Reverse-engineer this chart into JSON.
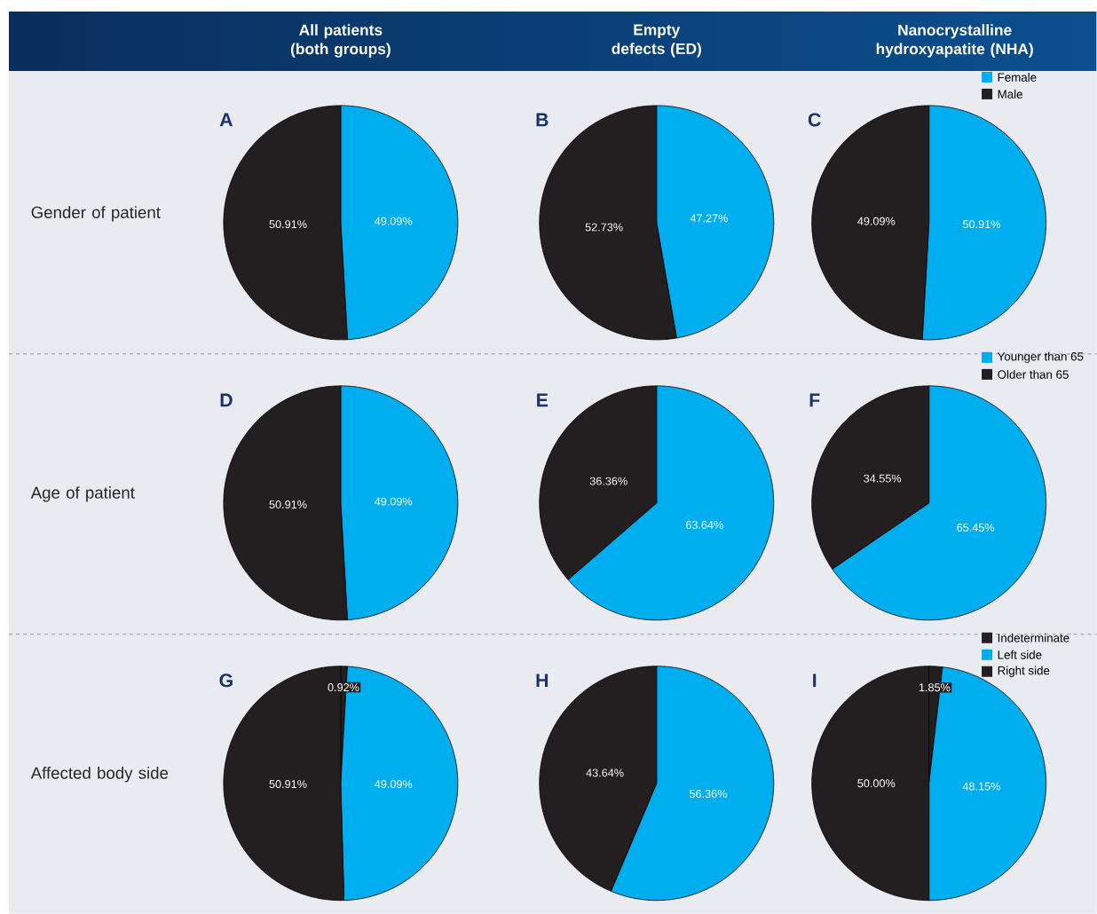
{
  "chart_data": [
    {
      "type": "pie",
      "title": "A",
      "subtitle": "All patients (both groups)",
      "annotations": [
        "Gender of patient"
      ],
      "categories": [
        null,
        null
      ],
      "values": [
        49.09,
        50.91
      ],
      "colors": [
        "#00aeef",
        "#231f20"
      ],
      "value_labels": [
        "49.09%",
        "50.91%"
      ]
    },
    {
      "type": "pie",
      "title": "B",
      "subtitle": "Empty defects (ED)",
      "categories": [
        null,
        null
      ],
      "values": [
        47.27,
        52.73
      ],
      "colors": [
        "#00aeef",
        "#231f20"
      ],
      "value_labels": [
        "47.27%",
        "52.73%"
      ]
    },
    {
      "type": "pie",
      "title": "C",
      "subtitle": "Nanocrystalline hydroxyapatite (NHA)",
      "categories": [
        "Female",
        "Male"
      ],
      "values": [
        50.91,
        49.09
      ],
      "colors": [
        "#00aeef",
        "#231f20"
      ],
      "value_labels": [
        "50.91%",
        "49.09%"
      ],
      "legend": "top right"
    },
    {
      "type": "pie",
      "title": "D",
      "annotations": [
        "Age of patient"
      ],
      "categories": [
        null,
        null
      ],
      "values": [
        49.09,
        50.91
      ],
      "colors": [
        "#00aeef",
        "#231f20"
      ],
      "value_labels": [
        "49.09%",
        "50.91%"
      ]
    },
    {
      "type": "pie",
      "title": "E",
      "categories": [
        null,
        null
      ],
      "values": [
        63.64,
        36.36
      ],
      "colors": [
        "#00aeef",
        "#231f20"
      ],
      "value_labels": [
        "63.64%",
        "36.36%"
      ]
    },
    {
      "type": "pie",
      "title": "F",
      "categories": [
        "Younger than 65",
        "Older than 65"
      ],
      "values": [
        65.45,
        34.55
      ],
      "colors": [
        "#00aeef",
        "#231f20"
      ],
      "value_labels": [
        "65.45%",
        "34.55%"
      ],
      "legend": "top right"
    },
    {
      "type": "pie",
      "title": "G",
      "annotations": [
        "Affected body side"
      ],
      "categories": [
        null,
        null,
        null
      ],
      "values": [
        0.92,
        49.09,
        50.91
      ],
      "colors": [
        "#231f20",
        "#00aeef",
        "#231f20"
      ],
      "value_labels": [
        "0.92%",
        "49.09%",
        "50.91%"
      ]
    },
    {
      "type": "pie",
      "title": "H",
      "categories": [
        null,
        null,
        null
      ],
      "values": [
        0,
        56.36,
        43.64
      ],
      "colors": [
        "#231f20",
        "#00aeef",
        "#231f20"
      ],
      "value_labels": [
        null,
        "56.36%",
        "43.64%"
      ]
    },
    {
      "type": "pie",
      "title": "I",
      "categories": [
        "Indeterminate",
        "Left side",
        "Right side"
      ],
      "values": [
        1.85,
        48.15,
        50.0
      ],
      "colors": [
        "#231f20",
        "#00aeef",
        "#231f20"
      ],
      "value_labels": [
        "1.85%",
        "48.15%",
        "50.00%"
      ],
      "legend": "top right"
    }
  ]
}
